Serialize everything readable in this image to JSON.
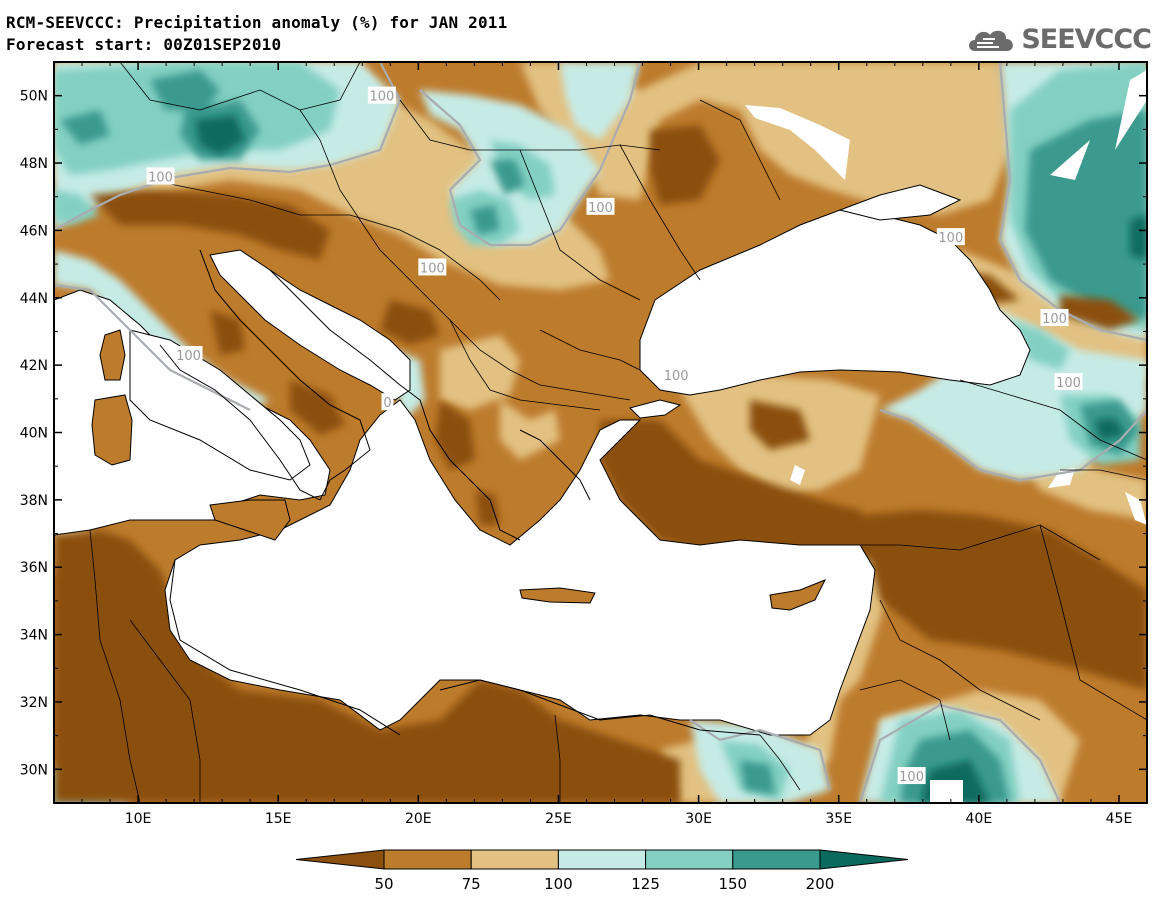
{
  "header": {
    "title_line1": "RCM-SEEVCCC: Precipitation anomaly (%) for JAN 2011",
    "title_line2": "Forecast start: 00Z01SEP2010",
    "logo_text": "SEEVCCC"
  },
  "map": {
    "lon_range": [
      7,
      46
    ],
    "lat_range": [
      29,
      51
    ],
    "lon_ticks": [
      {
        "value": 10,
        "label": "10E"
      },
      {
        "value": 15,
        "label": "15E"
      },
      {
        "value": 20,
        "label": "20E"
      },
      {
        "value": 25,
        "label": "25E"
      },
      {
        "value": 30,
        "label": "30E"
      },
      {
        "value": 35,
        "label": "35E"
      },
      {
        "value": 40,
        "label": "40E"
      },
      {
        "value": 45,
        "label": "45E"
      }
    ],
    "lat_ticks": [
      {
        "value": 30,
        "label": "30N"
      },
      {
        "value": 32,
        "label": "32N"
      },
      {
        "value": 34,
        "label": "34N"
      },
      {
        "value": 36,
        "label": "36N"
      },
      {
        "value": 38,
        "label": "38N"
      },
      {
        "value": 40,
        "label": "40N"
      },
      {
        "value": 42,
        "label": "42N"
      },
      {
        "value": 44,
        "label": "44N"
      },
      {
        "value": 46,
        "label": "46N"
      },
      {
        "value": 48,
        "label": "48N"
      },
      {
        "value": 50,
        "label": "50N"
      }
    ],
    "contour_labels": [
      {
        "text": "100",
        "lon": 18.7,
        "lat": 50.0
      },
      {
        "text": "100",
        "lon": 10.8,
        "lat": 47.6
      },
      {
        "text": "100",
        "lon": 26.5,
        "lat": 46.7
      },
      {
        "text": "100",
        "lon": 20.5,
        "lat": 44.9
      },
      {
        "text": "100",
        "lon": 39.0,
        "lat": 45.8
      },
      {
        "text": "100",
        "lon": 11.8,
        "lat": 42.3
      },
      {
        "text": "100",
        "lon": 29.2,
        "lat": 41.7
      },
      {
        "text": "100",
        "lon": 42.7,
        "lat": 43.4
      },
      {
        "text": "100",
        "lon": 43.2,
        "lat": 41.5
      },
      {
        "text": "100",
        "lon": 37.6,
        "lat": 29.8
      },
      {
        "text": "0",
        "lon": 18.9,
        "lat": 40.9
      }
    ]
  },
  "colorbar": {
    "boundaries": [
      "50",
      "75",
      "100",
      "125",
      "150",
      "200"
    ],
    "colors": [
      "#8b4f0e",
      "#bd7b2c",
      "#e2c182",
      "#c6ebe6",
      "#83d0c3",
      "#3a9a8d",
      "#0a6a5e"
    ]
  },
  "palette": {
    "sea": "#ffffff",
    "dry_strong": "#8b4f0e",
    "dry": "#bd7b2c",
    "dry_weak": "#e2c182",
    "wet_weak": "#c6ebe6",
    "wet": "#83d0c3",
    "wet_strong": "#3a9a8d",
    "wet_extreme": "#0a6a5e"
  }
}
